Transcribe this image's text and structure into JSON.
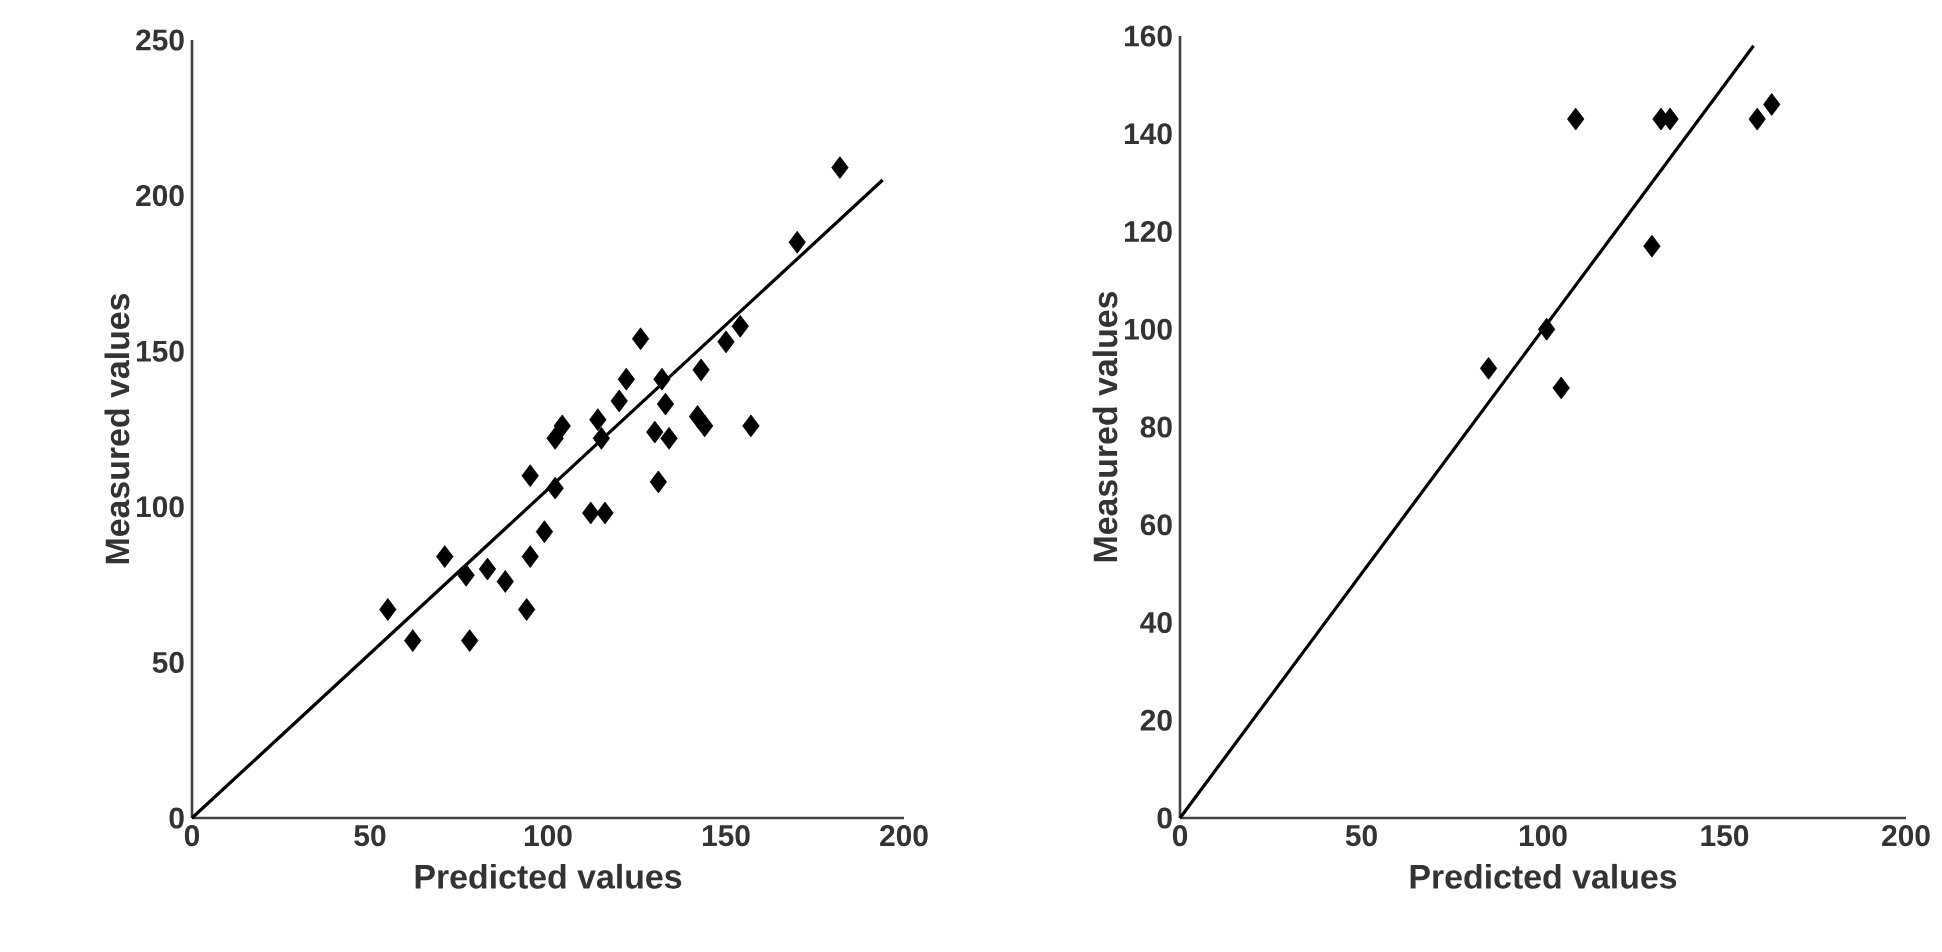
{
  "chart_data": [
    {
      "type": "scatter",
      "xlabel": "Predicted values",
      "ylabel": "Measured values",
      "xlim": [
        0,
        200
      ],
      "ylim": [
        0,
        250
      ],
      "xticks": [
        0,
        50,
        100,
        150,
        200
      ],
      "yticks": [
        0,
        50,
        100,
        150,
        200,
        250
      ],
      "series": [
        {
          "marker": "diamond",
          "color": "#000000",
          "x": [
            182,
            170,
            154,
            150,
            126,
            122,
            120,
            132,
            133,
            143,
            142,
            144,
            157,
            130,
            134,
            131,
            114,
            115,
            104,
            102,
            102,
            95,
            112,
            116,
            99,
            95,
            94,
            71,
            77,
            83,
            88,
            55,
            62,
            78
          ],
          "values": [
            209,
            185,
            158,
            153,
            154,
            141,
            134,
            141,
            133,
            144,
            129,
            126,
            126,
            124,
            122,
            108,
            128,
            122,
            126,
            122,
            106,
            110,
            98,
            98,
            92,
            84,
            67,
            84,
            78,
            80,
            76,
            67,
            57,
            57
          ]
        },
        {
          "type": "line",
          "color": "#000000",
          "x": [
            0,
            194
          ],
          "values": [
            0,
            205
          ]
        }
      ]
    },
    {
      "type": "scatter",
      "xlabel": "Predicted values",
      "ylabel": "Measured values",
      "xlim": [
        0,
        200
      ],
      "ylim": [
        0,
        160
      ],
      "xticks": [
        0,
        50,
        100,
        150,
        200
      ],
      "yticks": [
        0,
        20,
        40,
        60,
        80,
        100,
        120,
        140,
        160
      ],
      "series": [
        {
          "marker": "diamond",
          "color": "#000000",
          "x": [
            109,
            132.5,
            135,
            130,
            101,
            85,
            105,
            159,
            163
          ],
          "values": [
            143,
            143,
            143,
            117,
            100,
            92,
            88,
            143,
            146
          ]
        },
        {
          "type": "line",
          "color": "#000000",
          "x": [
            0,
            158
          ],
          "values": [
            0,
            158
          ]
        }
      ]
    }
  ]
}
